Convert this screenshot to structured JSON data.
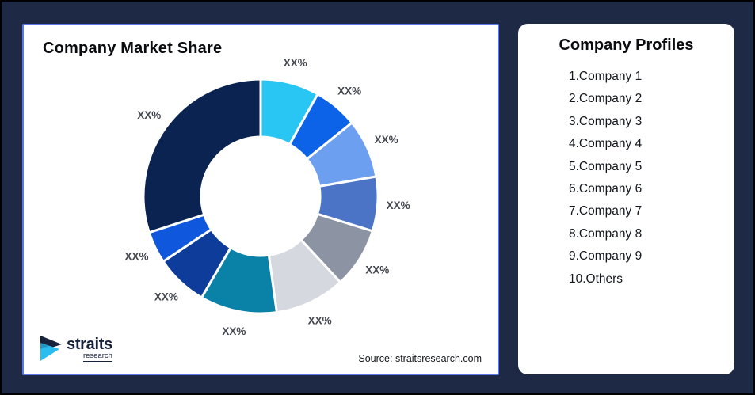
{
  "canvas": {
    "background_color": "#1E2A45",
    "border_color": "#000000"
  },
  "chart_card": {
    "title": "Company Market Share",
    "border_color": "#5A78EA",
    "source_text": "Source: straitsresearch.com",
    "logo": {
      "brand": "straits",
      "sub": "research",
      "navy": "#17223C",
      "cyan": "#29BDF0"
    }
  },
  "chart_data": {
    "type": "pie",
    "subtype": "donut",
    "title": "Company Market Share",
    "value_unit": "percent_market_share",
    "labels_shown_as": "XX% placeholders",
    "start_angle_deg": 0,
    "direction": "clockwise",
    "inner_radius_ratio": 0.51,
    "segments": [
      {
        "name": "Company 1",
        "label": "XX%",
        "value": 8.1,
        "color": "#29C6F4"
      },
      {
        "name": "Company 2",
        "label": "XX%",
        "value": 6.1,
        "color": "#0C63E8"
      },
      {
        "name": "Company 3",
        "label": "XX%",
        "value": 8.1,
        "color": "#6D9FF1"
      },
      {
        "name": "Company 4",
        "label": "XX%",
        "value": 7.5,
        "color": "#4C74C6"
      },
      {
        "name": "Company 5",
        "label": "XX%",
        "value": 8.3,
        "color": "#8C93A3"
      },
      {
        "name": "Company 6",
        "label": "XX%",
        "value": 9.7,
        "color": "#D5D8DF"
      },
      {
        "name": "Company 7",
        "label": "XX%",
        "value": 10.6,
        "color": "#0A81A6"
      },
      {
        "name": "Company 8",
        "label": "XX%",
        "value": 7.2,
        "color": "#0D3C9B"
      },
      {
        "name": "Company 9",
        "label": "XX%",
        "value": 4.4,
        "color": "#0F58DE"
      },
      {
        "name": "Others",
        "label": "XX%",
        "value": 30.0,
        "color": "#0A2351"
      }
    ]
  },
  "profiles_card": {
    "title": "Company Profiles",
    "items": [
      "1.Company 1",
      "2.Company 2",
      "3.Company 3",
      "4.Company 4",
      "5.Company 5",
      "6.Company 6",
      "7.Company 7",
      "8.Company 8",
      "9.Company 9",
      "10.Others"
    ]
  }
}
